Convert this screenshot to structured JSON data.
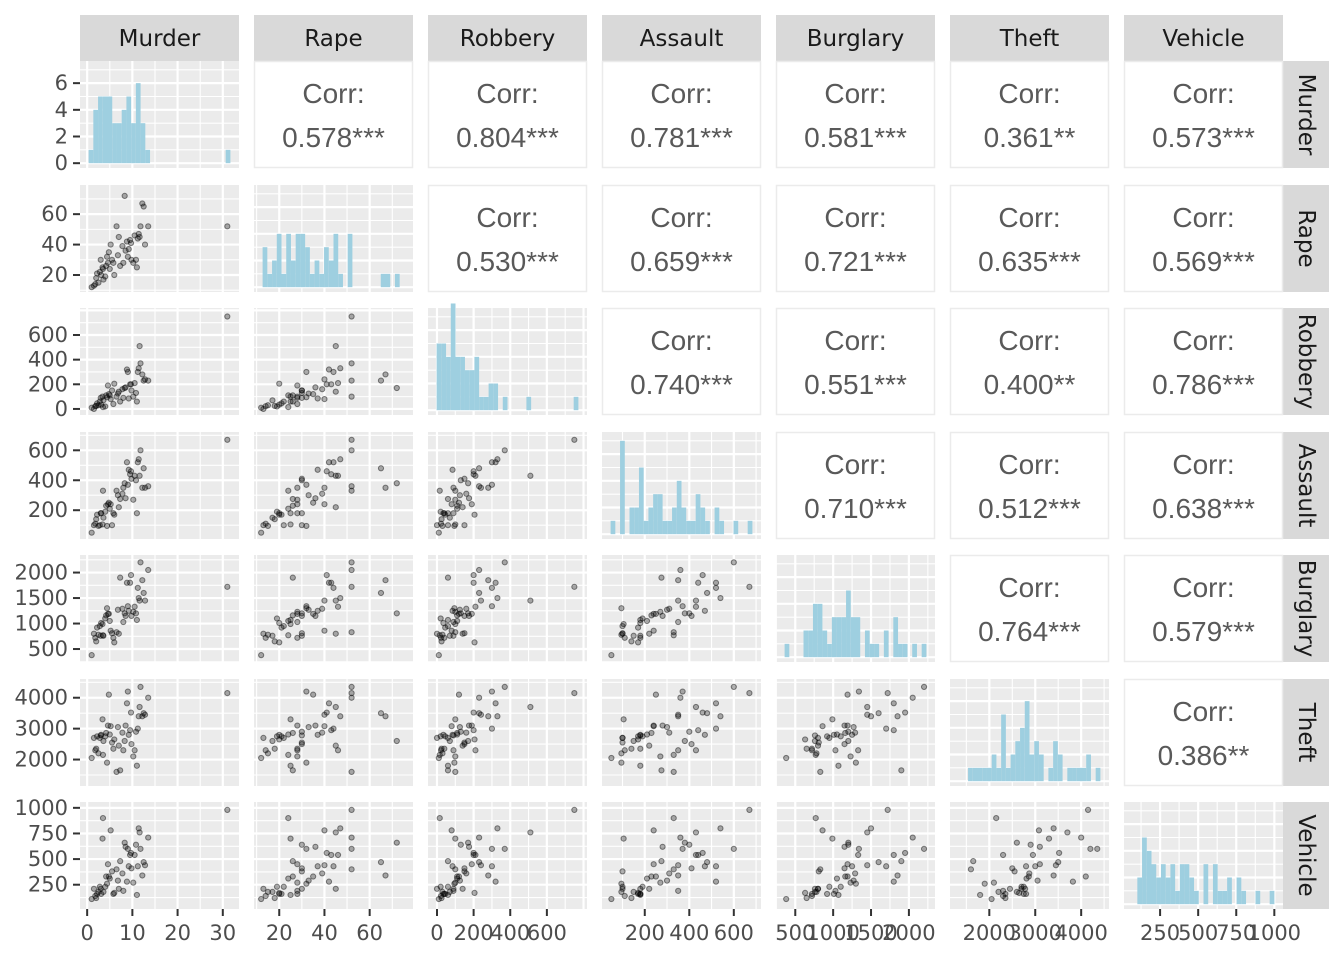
{
  "chart_data": {
    "type": "scatter",
    "title": "",
    "description": "Pairs plot (scatterplot matrix) of 7 crime-rate variables; lower triangle = scatter, diagonal = histogram, upper triangle = Pearson correlation",
    "variables": [
      "Murder",
      "Rape",
      "Robbery",
      "Assault",
      "Burglary",
      "Theft",
      "Vehicle"
    ],
    "axis_ranges": {
      "Murder": [
        0,
        32
      ],
      "Rape": [
        12,
        76
      ],
      "Robbery": [
        -10,
        780
      ],
      "Assault": [
        40,
        690
      ],
      "Burglary": [
        340,
        2250
      ],
      "Theft": [
        1300,
        4450
      ],
      "Vehicle": [
        60,
        1010
      ]
    },
    "x_ticks": {
      "Murder": [
        0,
        10,
        20,
        30
      ],
      "Rape": [
        20,
        40,
        60
      ],
      "Robbery": [
        0,
        200,
        400,
        600
      ],
      "Assault": [
        200,
        400,
        600
      ],
      "Burglary": [
        500,
        1000,
        1500,
        2000
      ],
      "Theft": [
        2000,
        3000,
        4000
      ],
      "Vehicle": [
        250,
        500,
        750,
        1000
      ]
    },
    "x_tick_labels": {
      "Murder": [
        "0",
        "10",
        "20",
        "30"
      ],
      "Rape": [
        "20",
        "40",
        "60"
      ],
      "Robbery": [
        "0",
        "200",
        "400",
        "600"
      ],
      "Assault": [
        "200",
        "400",
        "600"
      ],
      "Burglary": [
        "500",
        "1000",
        "1500",
        "2000"
      ],
      "Theft": [
        "2000",
        "3000",
        "4000"
      ],
      "Vehicle": [
        "250",
        "500",
        "750",
        "1000"
      ]
    },
    "y_ticks": {
      "Murder": [
        0,
        2,
        4,
        6
      ],
      "Rape": [
        20,
        40,
        60
      ],
      "Robbery": [
        0,
        200,
        400,
        600
      ],
      "Assault": [
        200,
        400,
        600
      ],
      "Burglary": [
        500,
        1000,
        1500,
        2000
      ],
      "Theft": [
        2000,
        3000,
        4000
      ],
      "Vehicle": [
        250,
        500,
        750,
        1000
      ]
    },
    "histogram_counts_range": [
      0,
      7.3
    ],
    "correlations": [
      {
        "row": "Murder",
        "col": "Rape",
        "label": "Corr:",
        "value": "0.578***"
      },
      {
        "row": "Murder",
        "col": "Robbery",
        "label": "Corr:",
        "value": "0.804***"
      },
      {
        "row": "Murder",
        "col": "Assault",
        "label": "Corr:",
        "value": "0.781***"
      },
      {
        "row": "Murder",
        "col": "Burglary",
        "label": "Corr:",
        "value": "0.581***"
      },
      {
        "row": "Murder",
        "col": "Theft",
        "label": "Corr:",
        "value": "0.361**"
      },
      {
        "row": "Murder",
        "col": "Vehicle",
        "label": "Corr:",
        "value": "0.573***"
      },
      {
        "row": "Rape",
        "col": "Robbery",
        "label": "Corr:",
        "value": "0.530***"
      },
      {
        "row": "Rape",
        "col": "Assault",
        "label": "Corr:",
        "value": "0.659***"
      },
      {
        "row": "Rape",
        "col": "Burglary",
        "label": "Corr:",
        "value": "0.721***"
      },
      {
        "row": "Rape",
        "col": "Theft",
        "label": "Corr:",
        "value": "0.635***"
      },
      {
        "row": "Rape",
        "col": "Vehicle",
        "label": "Corr:",
        "value": "0.569***"
      },
      {
        "row": "Robbery",
        "col": "Assault",
        "label": "Corr:",
        "value": "0.740***"
      },
      {
        "row": "Robbery",
        "col": "Burglary",
        "label": "Corr:",
        "value": "0.551***"
      },
      {
        "row": "Robbery",
        "col": "Theft",
        "label": "Corr:",
        "value": "0.400**"
      },
      {
        "row": "Robbery",
        "col": "Vehicle",
        "label": "Corr:",
        "value": "0.786***"
      },
      {
        "row": "Assault",
        "col": "Burglary",
        "label": "Corr:",
        "value": "0.710***"
      },
      {
        "row": "Assault",
        "col": "Theft",
        "label": "Corr:",
        "value": "0.512***"
      },
      {
        "row": "Assault",
        "col": "Vehicle",
        "label": "Corr:",
        "value": "0.638***"
      },
      {
        "row": "Burglary",
        "col": "Theft",
        "label": "Corr:",
        "value": "0.764***"
      },
      {
        "row": "Burglary",
        "col": "Vehicle",
        "label": "Corr:",
        "value": "0.579***"
      },
      {
        "row": "Theft",
        "col": "Vehicle",
        "label": "Corr:",
        "value": "0.386**"
      }
    ],
    "observations": [
      [
        1.0,
        12,
        10,
        50,
        380,
        2050,
        110
      ],
      [
        1.8,
        14,
        22,
        110,
        720,
        2300,
        140
      ],
      [
        2.2,
        21,
        45,
        170,
        920,
        2750,
        160
      ],
      [
        2.5,
        15,
        30,
        95,
        780,
        2200,
        180
      ],
      [
        2.8,
        22,
        60,
        100,
        950,
        2700,
        230
      ],
      [
        3.0,
        30,
        90,
        180,
        760,
        2780,
        210
      ],
      [
        3.1,
        20,
        35,
        180,
        1010,
        2800,
        160
      ],
      [
        3.4,
        25,
        100,
        105,
        990,
        3300,
        700
      ],
      [
        3.5,
        24,
        15,
        330,
        770,
        2150,
        900
      ],
      [
        3.6,
        17,
        70,
        150,
        760,
        2600,
        180
      ],
      [
        4.0,
        19,
        20,
        190,
        1100,
        2750,
        230
      ],
      [
        4.4,
        32,
        95,
        95,
        1300,
        1900,
        260
      ],
      [
        4.6,
        28,
        190,
        240,
        1190,
        3100,
        450
      ],
      [
        4.8,
        35,
        120,
        250,
        1190,
        4100,
        330
      ],
      [
        5.0,
        24,
        110,
        210,
        1050,
        2810,
        310
      ],
      [
        5.2,
        40,
        80,
        240,
        860,
        3080,
        780
      ],
      [
        5.5,
        30,
        150,
        100,
        810,
        2550,
        380
      ],
      [
        5.8,
        28,
        40,
        180,
        720,
        2350,
        160
      ],
      [
        6.0,
        20,
        205,
        170,
        630,
        2650,
        170
      ],
      [
        6.5,
        52,
        100,
        330,
        830,
        1600,
        400
      ],
      [
        7.0,
        45,
        140,
        220,
        800,
        2450,
        210
      ],
      [
        7.3,
        26,
        60,
        275,
        1900,
        1650,
        480
      ],
      [
        8.0,
        28,
        90,
        350,
        1030,
        2300,
        190
      ],
      [
        8.3,
        72,
        170,
        380,
        1200,
        2600,
        660
      ],
      [
        8.5,
        36,
        175,
        280,
        1150,
        3100,
        620
      ],
      [
        8.8,
        42,
        320,
        520,
        1800,
        3820,
        280
      ],
      [
        9.0,
        32,
        300,
        370,
        1340,
        4200,
        600
      ],
      [
        9.2,
        37,
        85,
        470,
        1250,
        2800,
        430
      ],
      [
        9.5,
        43,
        200,
        440,
        1800,
        2950,
        540
      ],
      [
        9.8,
        30,
        150,
        410,
        1150,
        2500,
        410
      ],
      [
        10.2,
        28,
        100,
        270,
        1230,
        2100,
        270
      ],
      [
        10.5,
        46,
        210,
        430,
        1330,
        2300,
        540
      ],
      [
        10.8,
        30,
        130,
        400,
        1200,
        2900,
        640
      ],
      [
        11.0,
        25,
        60,
        180,
        1070,
        1800,
        150
      ],
      [
        11.2,
        44,
        300,
        520,
        1700,
        3000,
        430
      ],
      [
        11.4,
        47,
        330,
        540,
        1500,
        3400,
        800
      ],
      [
        11.6,
        45,
        510,
        430,
        1450,
        3700,
        760
      ],
      [
        11.8,
        52,
        370,
        600,
        2200,
        4350,
        600
      ],
      [
        12.2,
        67,
        280,
        350,
        1850,
        3400,
        340
      ],
      [
        12.5,
        65,
        230,
        480,
        1600,
        3500,
        470
      ],
      [
        12.8,
        40,
        240,
        350,
        1450,
        3450,
        440
      ],
      [
        13.5,
        52,
        230,
        360,
        2050,
        4000,
        710
      ],
      [
        1.5,
        13,
        0,
        100,
        800,
        2700,
        210
      ],
      [
        2.0,
        18,
        25,
        140,
        650,
        2350,
        120
      ],
      [
        4.2,
        26,
        110,
        230,
        1160,
        2860,
        330
      ],
      [
        6.8,
        33,
        125,
        300,
        1270,
        3050,
        290
      ],
      [
        7.8,
        39,
        160,
        310,
        1290,
        2870,
        360
      ],
      [
        9.7,
        41,
        200,
        460,
        1950,
        3520,
        560
      ],
      [
        31.0,
        52,
        750,
        670,
        1720,
        4150,
        980
      ]
    ]
  }
}
